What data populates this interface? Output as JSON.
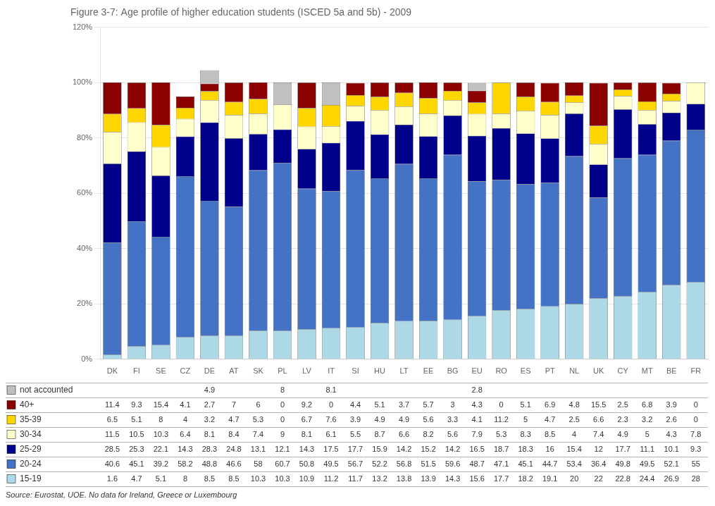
{
  "chart_data": {
    "type": "bar",
    "title": "Figure 3-7: Age profile of higher education students (ISCED 5a and 5b) - 2009",
    "annotations": [
      "Source: Eurostat, UOE. No data for Ireland, Greece or Luxembourg"
    ],
    "categories": [
      "DK",
      "FI",
      "SE",
      "CZ",
      "DE",
      "AT",
      "SK",
      "PL",
      "LV",
      "IT",
      "SI",
      "HU",
      "LT",
      "EE",
      "BG",
      "EU",
      "RO",
      "ES",
      "PT",
      "NL",
      "UK",
      "CY",
      "MT",
      "BE",
      "FR"
    ],
    "stacked": true,
    "grid": true,
    "data_labels": true,
    "ylim": [
      0,
      120
    ],
    "yticks": [
      {
        "value": 0,
        "label": "0%"
      },
      {
        "value": 20,
        "label": "20%"
      },
      {
        "value": 40,
        "label": "40%"
      },
      {
        "value": 60,
        "label": "60%"
      },
      {
        "value": 80,
        "label": "80%"
      },
      {
        "value": 100,
        "label": "100%"
      },
      {
        "value": 120,
        "label": "120%"
      }
    ],
    "series": [
      {
        "name": "15-19",
        "color": "#add8e6",
        "values": [
          1.6,
          4.7,
          5.1,
          8.0,
          8.5,
          8.5,
          10.3,
          10.3,
          10.9,
          11.2,
          11.7,
          13.2,
          13.8,
          13.9,
          14.3,
          15.6,
          17.7,
          18.2,
          19.1,
          20.0,
          22.0,
          22.8,
          24.4,
          26.9,
          28.0
        ]
      },
      {
        "name": "20-24",
        "color": "#4472c4",
        "values": [
          40.6,
          45.1,
          39.2,
          58.2,
          48.8,
          46.6,
          58.0,
          60.7,
          50.8,
          49.5,
          56.7,
          52.2,
          56.8,
          51.5,
          59.6,
          48.7,
          47.1,
          45.1,
          44.7,
          53.4,
          36.4,
          49.8,
          49.5,
          52.1,
          55.0
        ]
      },
      {
        "name": "25-29",
        "color": "#00008b",
        "values": [
          28.5,
          25.3,
          22.1,
          14.3,
          28.3,
          24.8,
          13.1,
          12.1,
          14.3,
          17.5,
          17.7,
          15.9,
          14.2,
          15.2,
          14.2,
          16.5,
          18.7,
          18.3,
          16.0,
          15.4,
          12.0,
          17.7,
          11.1,
          10.1,
          9.3
        ]
      },
      {
        "name": "30-34",
        "color": "#ffffcc",
        "values": [
          11.5,
          10.5,
          10.3,
          6.4,
          8.1,
          8.4,
          7.4,
          9.0,
          8.1,
          6.1,
          5.5,
          8.7,
          6.6,
          8.2,
          5.6,
          7.9,
          5.3,
          8.3,
          8.5,
          4.0,
          7.4,
          4.9,
          5.0,
          4.3,
          7.8
        ]
      },
      {
        "name": "35-39",
        "color": "#ffd700",
        "values": [
          6.5,
          5.1,
          8.0,
          4.0,
          3.2,
          4.7,
          5.3,
          0,
          6.7,
          7.6,
          3.9,
          4.9,
          4.9,
          5.6,
          3.3,
          4.1,
          11.2,
          5.0,
          4.7,
          2.5,
          6.6,
          2.3,
          3.2,
          2.6,
          0
        ]
      },
      {
        "name": "40+",
        "color": "#8b0000",
        "values": [
          11.4,
          9.3,
          15.4,
          4.1,
          2.7,
          7.0,
          6.0,
          0,
          9.2,
          0,
          4.4,
          5.1,
          3.7,
          5.7,
          3.0,
          4.3,
          0,
          5.1,
          6.9,
          4.8,
          15.5,
          2.5,
          6.8,
          3.9,
          0
        ]
      },
      {
        "name": "not accounted",
        "color": "#c0c0c0",
        "values": [
          0,
          0,
          0,
          0,
          4.9,
          0,
          0,
          8.0,
          0,
          8.1,
          0,
          0,
          0,
          0,
          0,
          2.8,
          0,
          0,
          0,
          0,
          0,
          0,
          0,
          0,
          0
        ],
        "value_labels": [
          null,
          null,
          null,
          null,
          "4.9",
          null,
          null,
          "8",
          null,
          "8.1",
          null,
          null,
          null,
          null,
          null,
          "2.8",
          null,
          null,
          null,
          null,
          null,
          null,
          null,
          null,
          null
        ]
      }
    ]
  }
}
